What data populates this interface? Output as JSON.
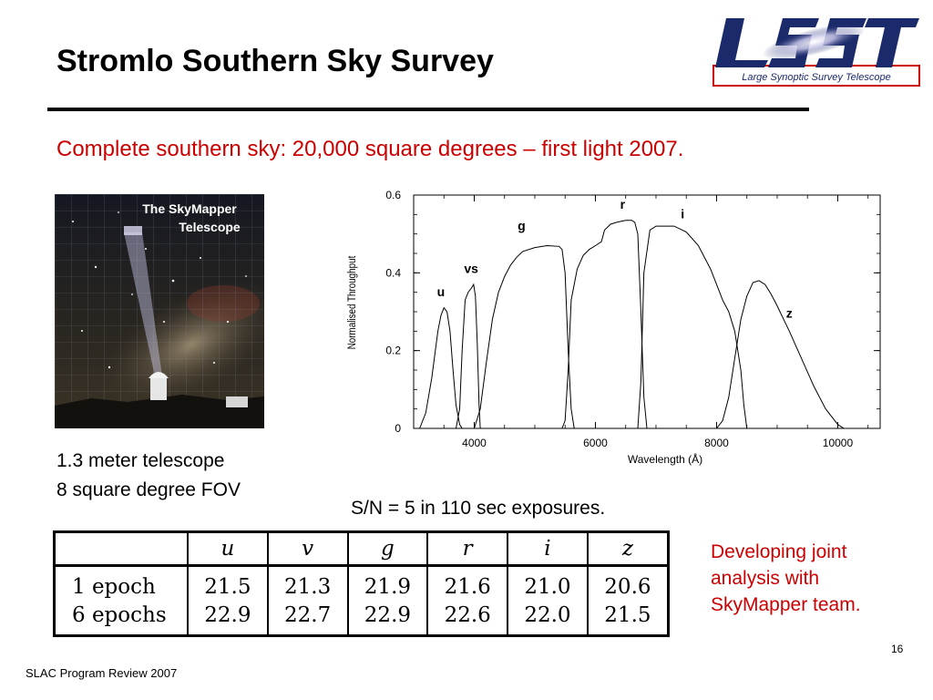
{
  "slide": {
    "title": "Stromlo Southern Sky Survey",
    "subtitle": "Complete southern sky: 20,000 square degrees – first light 2007.",
    "accent_color": "#cc0000",
    "page_number": "16",
    "footer": "SLAC Program Review 2007"
  },
  "logo": {
    "wordmark": "LSST",
    "tagline": "Large Synoptic Survey Telescope",
    "colors": [
      "#1b2a6b",
      "#cc0000"
    ]
  },
  "photo": {
    "label_line1": "The  SkyMapper",
    "label_line2": "Telescope"
  },
  "captions": {
    "line1": "1.3 meter telescope",
    "line2": "8 square degree FOV"
  },
  "exposure_note": "S/N = 5 in 110 sec exposures.",
  "table": {
    "columns": [
      "u",
      "v",
      "g",
      "r",
      "i",
      "z"
    ],
    "rows": [
      {
        "label": "1 epoch",
        "values": [
          "21.5",
          "21.3",
          "21.9",
          "21.6",
          "21.0",
          "20.6"
        ]
      },
      {
        "label": "6 epochs",
        "values": [
          "22.9",
          "22.7",
          "22.9",
          "22.6",
          "22.0",
          "21.5"
        ]
      }
    ]
  },
  "side_note": {
    "line1": "Developing joint",
    "line2": "analysis with",
    "line3": "SkyMapper team."
  },
  "chart_data": {
    "type": "line",
    "xlabel": "Wavelength (Å)",
    "ylabel": "Normalised Throughput",
    "xlim": [
      3000,
      10700
    ],
    "ylim": [
      0,
      0.6
    ],
    "xticks": [
      4000,
      6000,
      8000,
      10000
    ],
    "yticks": [
      0,
      0.2,
      0.4,
      0.6
    ],
    "xtick_labels": [
      "4000",
      "6000",
      "8000",
      "10000"
    ],
    "ytick_labels": [
      "0",
      "0.2",
      "0.4",
      "0.6"
    ],
    "series": [
      {
        "name": "u",
        "label_at": [
          3450,
          0.34
        ],
        "points": [
          [
            3100,
            0.0
          ],
          [
            3200,
            0.04
          ],
          [
            3300,
            0.13
          ],
          [
            3400,
            0.25
          ],
          [
            3450,
            0.29
          ],
          [
            3500,
            0.31
          ],
          [
            3550,
            0.3
          ],
          [
            3600,
            0.25
          ],
          [
            3650,
            0.15
          ],
          [
            3700,
            0.06
          ],
          [
            3760,
            0.01
          ],
          [
            3800,
            0.0
          ]
        ]
      },
      {
        "name": "vs",
        "label_at": [
          3950,
          0.4
        ],
        "points": [
          [
            3700,
            0.0
          ],
          [
            3760,
            0.05
          ],
          [
            3800,
            0.2
          ],
          [
            3850,
            0.33
          ],
          [
            3900,
            0.35
          ],
          [
            3950,
            0.36
          ],
          [
            3990,
            0.37
          ],
          [
            4020,
            0.34
          ],
          [
            4050,
            0.22
          ],
          [
            4080,
            0.06
          ],
          [
            4100,
            0.0
          ]
        ]
      },
      {
        "name": "g",
        "label_at": [
          4780,
          0.51
        ],
        "points": [
          [
            4000,
            0.0
          ],
          [
            4100,
            0.05
          ],
          [
            4200,
            0.17
          ],
          [
            4300,
            0.28
          ],
          [
            4400,
            0.35
          ],
          [
            4500,
            0.39
          ],
          [
            4600,
            0.42
          ],
          [
            4700,
            0.44
          ],
          [
            4800,
            0.455
          ],
          [
            5000,
            0.465
          ],
          [
            5200,
            0.47
          ],
          [
            5400,
            0.468
          ],
          [
            5450,
            0.46
          ],
          [
            5500,
            0.4
          ],
          [
            5550,
            0.2
          ],
          [
            5600,
            0.05
          ],
          [
            5650,
            0.0
          ]
        ]
      },
      {
        "name": "r",
        "label_at": [
          6450,
          0.565
        ],
        "points": [
          [
            5450,
            0.0
          ],
          [
            5500,
            0.02
          ],
          [
            5550,
            0.15
          ],
          [
            5600,
            0.33
          ],
          [
            5700,
            0.41
          ],
          [
            5800,
            0.445
          ],
          [
            5900,
            0.46
          ],
          [
            6000,
            0.47
          ],
          [
            6100,
            0.48
          ],
          [
            6150,
            0.51
          ],
          [
            6250,
            0.525
          ],
          [
            6350,
            0.53
          ],
          [
            6500,
            0.535
          ],
          [
            6600,
            0.535
          ],
          [
            6650,
            0.53
          ],
          [
            6700,
            0.5
          ],
          [
            6750,
            0.3
          ],
          [
            6800,
            0.08
          ],
          [
            6850,
            0.0
          ]
        ]
      },
      {
        "name": "i",
        "label_at": [
          7440,
          0.54
        ],
        "points": [
          [
            6700,
            0.0
          ],
          [
            6750,
            0.12
          ],
          [
            6800,
            0.4
          ],
          [
            6900,
            0.51
          ],
          [
            7000,
            0.52
          ],
          [
            7100,
            0.52
          ],
          [
            7300,
            0.52
          ],
          [
            7500,
            0.505
          ],
          [
            7700,
            0.47
          ],
          [
            7900,
            0.41
          ],
          [
            8000,
            0.37
          ],
          [
            8100,
            0.33
          ],
          [
            8200,
            0.3
          ],
          [
            8300,
            0.25
          ],
          [
            8400,
            0.15
          ],
          [
            8450,
            0.06
          ],
          [
            8500,
            0.0
          ]
        ]
      },
      {
        "name": "z",
        "label_at": [
          9200,
          0.285
        ],
        "points": [
          [
            8000,
            0.0
          ],
          [
            8100,
            0.02
          ],
          [
            8200,
            0.08
          ],
          [
            8300,
            0.18
          ],
          [
            8400,
            0.28
          ],
          [
            8500,
            0.34
          ],
          [
            8600,
            0.375
          ],
          [
            8700,
            0.38
          ],
          [
            8800,
            0.37
          ],
          [
            8900,
            0.345
          ],
          [
            9000,
            0.315
          ],
          [
            9200,
            0.25
          ],
          [
            9400,
            0.18
          ],
          [
            9600,
            0.11
          ],
          [
            9800,
            0.05
          ],
          [
            10000,
            0.01
          ],
          [
            10100,
            0.0
          ]
        ]
      }
    ]
  }
}
